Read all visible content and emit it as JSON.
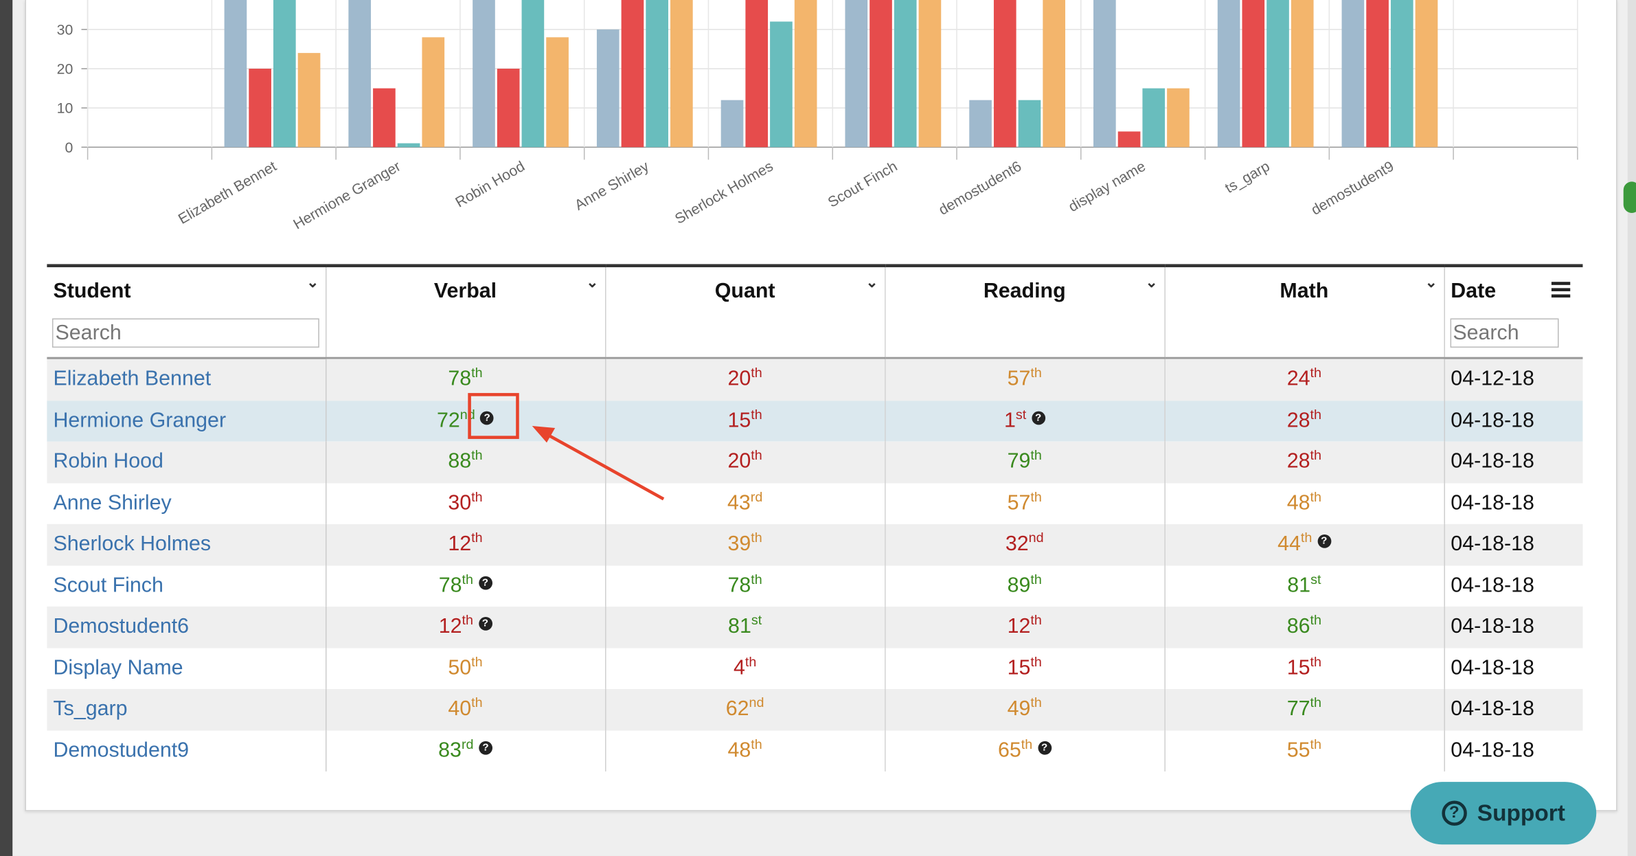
{
  "chart_data": {
    "type": "bar",
    "categories": [
      "Elizabeth Bennet",
      "Hermione Granger",
      "Robin Hood",
      "Anne Shirley",
      "Sherlock Holmes",
      "Scout Finch",
      "demostudent6",
      "display name",
      "ts_garp",
      "demostudent9"
    ],
    "series": [
      {
        "values": [
          78,
          72,
          88,
          30,
          12,
          78,
          12,
          50,
          40,
          83
        ],
        "color": "#9fb9cd"
      },
      {
        "values": [
          20,
          15,
          20,
          43,
          39,
          78,
          81,
          4,
          62,
          48
        ],
        "color": "#e64c4c"
      },
      {
        "values": [
          57,
          1,
          79,
          57,
          32,
          89,
          12,
          15,
          49,
          65
        ],
        "color": "#69bdbd"
      },
      {
        "values": [
          24,
          28,
          28,
          48,
          44,
          81,
          86,
          15,
          77,
          55
        ],
        "color": "#f3b56c"
      }
    ],
    "yticks": [
      0,
      10,
      20,
      30
    ],
    "visible_ylim": [
      0,
      37
    ],
    "grid": true
  },
  "table": {
    "columns": [
      {
        "label": "Student"
      },
      {
        "label": "Verbal"
      },
      {
        "label": "Quant"
      },
      {
        "label": "Reading"
      },
      {
        "label": "Math"
      },
      {
        "label": "Date"
      }
    ],
    "search_placeholder": "Search",
    "rows": [
      {
        "student": "Elizabeth Bennet",
        "verbal": {
          "n": "78",
          "s": "th",
          "c": "green",
          "q": false
        },
        "quant": {
          "n": "20",
          "s": "th",
          "c": "red",
          "q": false
        },
        "reading": {
          "n": "57",
          "s": "th",
          "c": "orange",
          "q": false
        },
        "math": {
          "n": "24",
          "s": "th",
          "c": "red",
          "q": false
        },
        "date": "04-12-18"
      },
      {
        "student": "Hermione Granger",
        "verbal": {
          "n": "72",
          "s": "nd",
          "c": "green",
          "q": true
        },
        "quant": {
          "n": "15",
          "s": "th",
          "c": "red",
          "q": false
        },
        "reading": {
          "n": "1",
          "s": "st",
          "c": "red",
          "q": true
        },
        "math": {
          "n": "28",
          "s": "th",
          "c": "red",
          "q": false
        },
        "date": "04-18-18"
      },
      {
        "student": "Robin Hood",
        "verbal": {
          "n": "88",
          "s": "th",
          "c": "green",
          "q": false
        },
        "quant": {
          "n": "20",
          "s": "th",
          "c": "red",
          "q": false
        },
        "reading": {
          "n": "79",
          "s": "th",
          "c": "green",
          "q": false
        },
        "math": {
          "n": "28",
          "s": "th",
          "c": "red",
          "q": false
        },
        "date": "04-18-18"
      },
      {
        "student": "Anne Shirley",
        "verbal": {
          "n": "30",
          "s": "th",
          "c": "red",
          "q": false
        },
        "quant": {
          "n": "43",
          "s": "rd",
          "c": "orange",
          "q": false
        },
        "reading": {
          "n": "57",
          "s": "th",
          "c": "orange",
          "q": false
        },
        "math": {
          "n": "48",
          "s": "th",
          "c": "orange",
          "q": false
        },
        "date": "04-18-18"
      },
      {
        "student": "Sherlock Holmes",
        "verbal": {
          "n": "12",
          "s": "th",
          "c": "red",
          "q": false
        },
        "quant": {
          "n": "39",
          "s": "th",
          "c": "orange",
          "q": false
        },
        "reading": {
          "n": "32",
          "s": "nd",
          "c": "red",
          "q": false
        },
        "math": {
          "n": "44",
          "s": "th",
          "c": "orange",
          "q": true
        },
        "date": "04-18-18"
      },
      {
        "student": "Scout Finch",
        "verbal": {
          "n": "78",
          "s": "th",
          "c": "green",
          "q": true
        },
        "quant": {
          "n": "78",
          "s": "th",
          "c": "green",
          "q": false
        },
        "reading": {
          "n": "89",
          "s": "th",
          "c": "green",
          "q": false
        },
        "math": {
          "n": "81",
          "s": "st",
          "c": "green",
          "q": false
        },
        "date": "04-18-18"
      },
      {
        "student": "Demostudent6",
        "verbal": {
          "n": "12",
          "s": "th",
          "c": "red",
          "q": true
        },
        "quant": {
          "n": "81",
          "s": "st",
          "c": "green",
          "q": false
        },
        "reading": {
          "n": "12",
          "s": "th",
          "c": "red",
          "q": false
        },
        "math": {
          "n": "86",
          "s": "th",
          "c": "green",
          "q": false
        },
        "date": "04-18-18"
      },
      {
        "student": "Display Name",
        "verbal": {
          "n": "50",
          "s": "th",
          "c": "orange",
          "q": false
        },
        "quant": {
          "n": "4",
          "s": "th",
          "c": "red",
          "q": false
        },
        "reading": {
          "n": "15",
          "s": "th",
          "c": "red",
          "q": false
        },
        "math": {
          "n": "15",
          "s": "th",
          "c": "red",
          "q": false
        },
        "date": "04-18-18"
      },
      {
        "student": "Ts_garp",
        "verbal": {
          "n": "40",
          "s": "th",
          "c": "orange",
          "q": false
        },
        "quant": {
          "n": "62",
          "s": "nd",
          "c": "orange",
          "q": false
        },
        "reading": {
          "n": "49",
          "s": "th",
          "c": "orange",
          "q": false
        },
        "math": {
          "n": "77",
          "s": "th",
          "c": "green",
          "q": false
        },
        "date": "04-18-18"
      },
      {
        "student": "Demostudent9",
        "verbal": {
          "n": "83",
          "s": "rd",
          "c": "green",
          "q": true
        },
        "quant": {
          "n": "48",
          "s": "th",
          "c": "orange",
          "q": false
        },
        "reading": {
          "n": "65",
          "s": "th",
          "c": "orange",
          "q": true
        },
        "math": {
          "n": "55",
          "s": "th",
          "c": "orange",
          "q": false
        },
        "date": "04-18-18"
      }
    ]
  },
  "support": {
    "label": "Support",
    "icon": "help-circle-icon"
  },
  "colors": {
    "link": "#3a72ad",
    "green": "#3a8a1f",
    "red": "#b32020",
    "orange": "#d08a30",
    "annotation": "#e8442c",
    "support_bg": "#46a9b6"
  }
}
